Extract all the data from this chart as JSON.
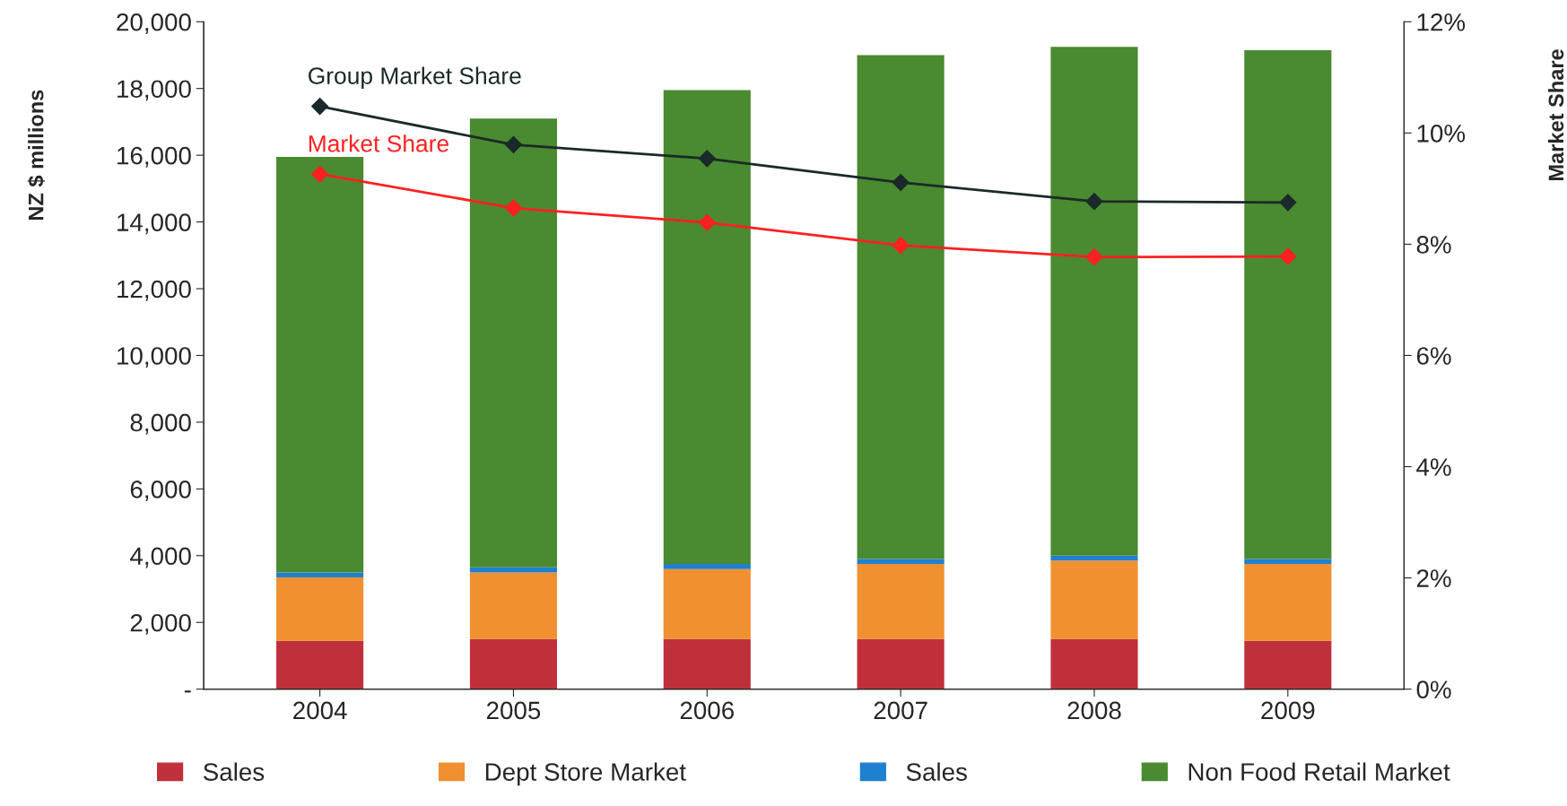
{
  "chart_data": {
    "type": "bar",
    "stacked": true,
    "ylabel": "NZ $ millions",
    "y2label": "Market Share",
    "categories": [
      "2004",
      "2005",
      "2006",
      "2007",
      "2008",
      "2009"
    ],
    "series": [
      {
        "name": "Sales",
        "color": "#c0303a",
        "values": [
          1450,
          1500,
          1500,
          1500,
          1500,
          1450
        ]
      },
      {
        "name": "Dept Store Market",
        "color": "#f09030",
        "values": [
          1900,
          2000,
          2100,
          2250,
          2350,
          2300
        ]
      },
      {
        "name": "Sales",
        "color": "#2080d0",
        "values": [
          150,
          150,
          150,
          150,
          150,
          150
        ]
      },
      {
        "name": "Non Food Retail Market",
        "color": "#4a8a30",
        "values": [
          12450,
          13450,
          14200,
          15100,
          15250,
          15250
        ]
      },
      {
        "name": "Group Market Share",
        "type": "line",
        "axis": "y2",
        "color": "#1a2a2a",
        "marker": "diamond",
        "values": [
          10.48,
          9.79,
          9.54,
          9.11,
          8.77,
          8.75
        ]
      },
      {
        "name": "Market Share",
        "type": "line",
        "axis": "y2",
        "color": "#ff2020",
        "marker": "diamond",
        "values": [
          9.26,
          8.65,
          8.39,
          7.98,
          7.77,
          7.78
        ]
      }
    ],
    "ylim": [
      0,
      20000
    ],
    "yticks": [
      {
        "value": 0,
        "label": "-"
      },
      {
        "value": 2000,
        "label": "2,000"
      },
      {
        "value": 4000,
        "label": "4,000"
      },
      {
        "value": 6000,
        "label": "6,000"
      },
      {
        "value": 8000,
        "label": "8,000"
      },
      {
        "value": 10000,
        "label": "10,000"
      },
      {
        "value": 12000,
        "label": "12,000"
      },
      {
        "value": 14000,
        "label": "14,000"
      },
      {
        "value": 16000,
        "label": "16,000"
      },
      {
        "value": 18000,
        "label": "18,000"
      },
      {
        "value": 20000,
        "label": "20,000"
      }
    ],
    "y2lim": [
      0,
      12
    ],
    "y2ticks": [
      {
        "value": 0,
        "label": "0%"
      },
      {
        "value": 2,
        "label": "2%"
      },
      {
        "value": 4,
        "label": "4%"
      },
      {
        "value": 6,
        "label": "6%"
      },
      {
        "value": 8,
        "label": "8%"
      },
      {
        "value": 10,
        "label": "10%"
      },
      {
        "value": 12,
        "label": "12%"
      }
    ],
    "legend": "bottom",
    "grid": false
  }
}
